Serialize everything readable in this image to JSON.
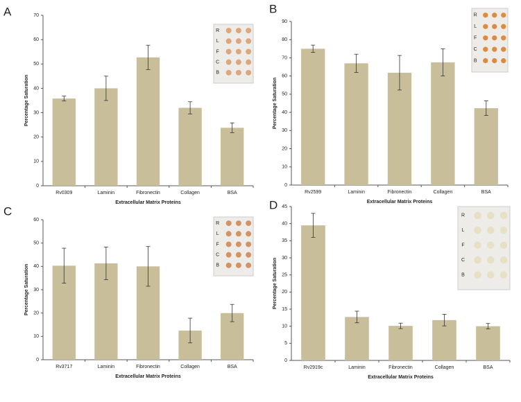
{
  "chart_data": [
    {
      "type": "bar",
      "panel": "A",
      "categories": [
        "Rv0309",
        "Laminin",
        "Fibronectin",
        "Collagen",
        "BSA"
      ],
      "values": [
        35.8,
        40,
        52.7,
        32,
        23.8
      ],
      "errors": [
        1,
        5,
        5,
        2.5,
        2
      ],
      "color": "#c8bf9a",
      "ylabel": "Percentage Saturation",
      "xlabel": "Extracellular Matrix Proteins",
      "ylim": [
        0,
        70
      ],
      "yticks": [
        0,
        10,
        20,
        30,
        40,
        50,
        60,
        70
      ],
      "inset_rows": [
        "R",
        "L",
        "F",
        "C",
        "B"
      ]
    },
    {
      "type": "bar",
      "panel": "B",
      "categories": [
        "Rv2599",
        "Laminin",
        "Fibronectin",
        "Collagen",
        "BSA"
      ],
      "values": [
        75,
        67,
        61.8,
        67.5,
        42.3
      ],
      "errors": [
        2,
        5,
        9.5,
        7.5,
        4
      ],
      "color": "#c8bf9a",
      "ylabel": "Percentage Saturation",
      "xlabel": "Extracellular Matrix Proteins",
      "ylim": [
        0,
        90
      ],
      "yticks": [
        0,
        10,
        20,
        30,
        40,
        50,
        60,
        70,
        80,
        90
      ],
      "inset_rows": [
        "R",
        "L",
        "F",
        "C",
        "B"
      ]
    },
    {
      "type": "bar",
      "panel": "C",
      "categories": [
        "Rv3717",
        "Laminin",
        "Fibronectin",
        "Collagen",
        "BSA"
      ],
      "values": [
        40.3,
        41.3,
        40,
        12.5,
        20
      ],
      "errors": [
        7.5,
        7,
        8.5,
        5.3,
        3.7
      ],
      "color": "#c8bf9a",
      "ylabel": "Percentage Saturation",
      "xlabel": "Extracellular Matrix Proteins",
      "ylim": [
        0,
        60
      ],
      "yticks": [
        0,
        10,
        20,
        30,
        40,
        50,
        60
      ],
      "inset_rows": [
        "R",
        "L",
        "F",
        "C",
        "B"
      ]
    },
    {
      "type": "bar",
      "panel": "D",
      "categories": [
        "Rv2919c",
        "Laminin",
        "Fibronectin",
        "Collagen",
        "BSA"
      ],
      "values": [
        39.5,
        12.7,
        10.1,
        11.8,
        10
      ],
      "errors": [
        3.5,
        1.7,
        0.8,
        1.7,
        0.8
      ],
      "color": "#c8bf9a",
      "ylabel": "Percentage Saturation",
      "xlabel": "Extracellular Matrix Proteins",
      "ylim": [
        0,
        45
      ],
      "yticks": [
        0,
        5,
        10,
        15,
        20,
        25,
        30,
        35,
        40,
        45
      ],
      "inset_rows": [
        "R",
        "L",
        "F",
        "C",
        "B"
      ]
    }
  ]
}
